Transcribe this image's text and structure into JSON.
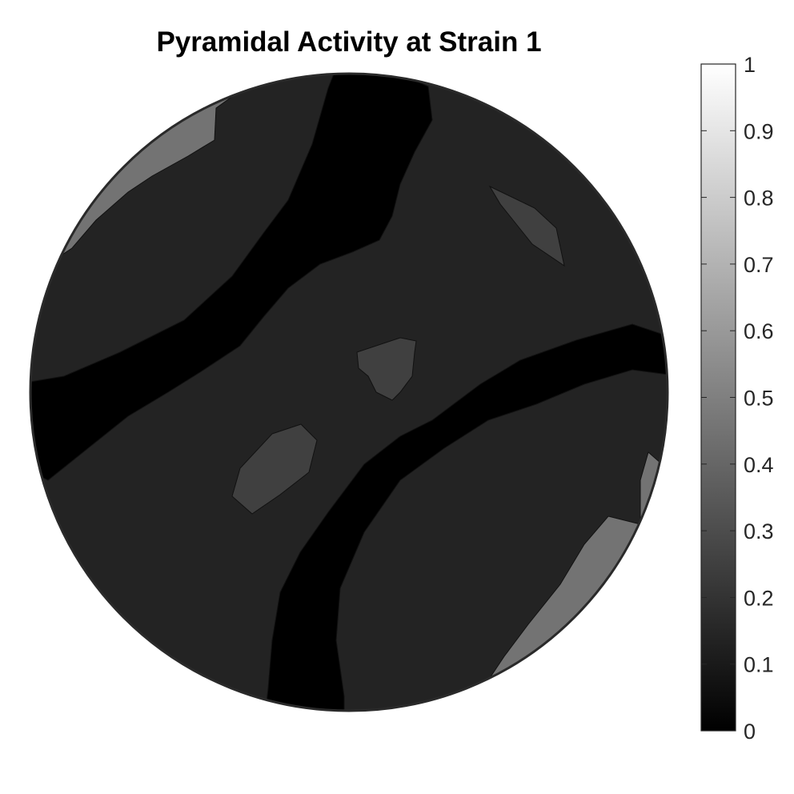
{
  "chart_data": {
    "type": "heatmap",
    "subtype": "pole-figure-contour",
    "title": "Pyramidal Activity at Strain 1",
    "colormap": "gray",
    "colorbar": {
      "position": "right",
      "range": [
        0,
        1
      ],
      "ticks": [
        "0",
        "0.1",
        "0.2",
        "0.3",
        "0.4",
        "0.5",
        "0.6",
        "0.7",
        "0.8",
        "0.9",
        "1"
      ]
    },
    "contour_levels": [
      0.05,
      0.1,
      0.15,
      0.2,
      0.25,
      0.3,
      0.35,
      0.4,
      0.45
    ],
    "regions": [
      {
        "name": "dark-band-upper-left",
        "value": 0.0
      },
      {
        "name": "dark-band-lower-right",
        "value": 0.0
      },
      {
        "name": "central-plateau",
        "value": 0.2
      },
      {
        "name": "peak-upper-right",
        "value": 0.25
      },
      {
        "name": "peak-center",
        "value": 0.25
      },
      {
        "name": "peak-center-left",
        "value": 0.25
      },
      {
        "name": "high-upper-left-edge",
        "value": 0.45
      },
      {
        "name": "high-lower-right-edge",
        "value": 0.45
      }
    ]
  }
}
